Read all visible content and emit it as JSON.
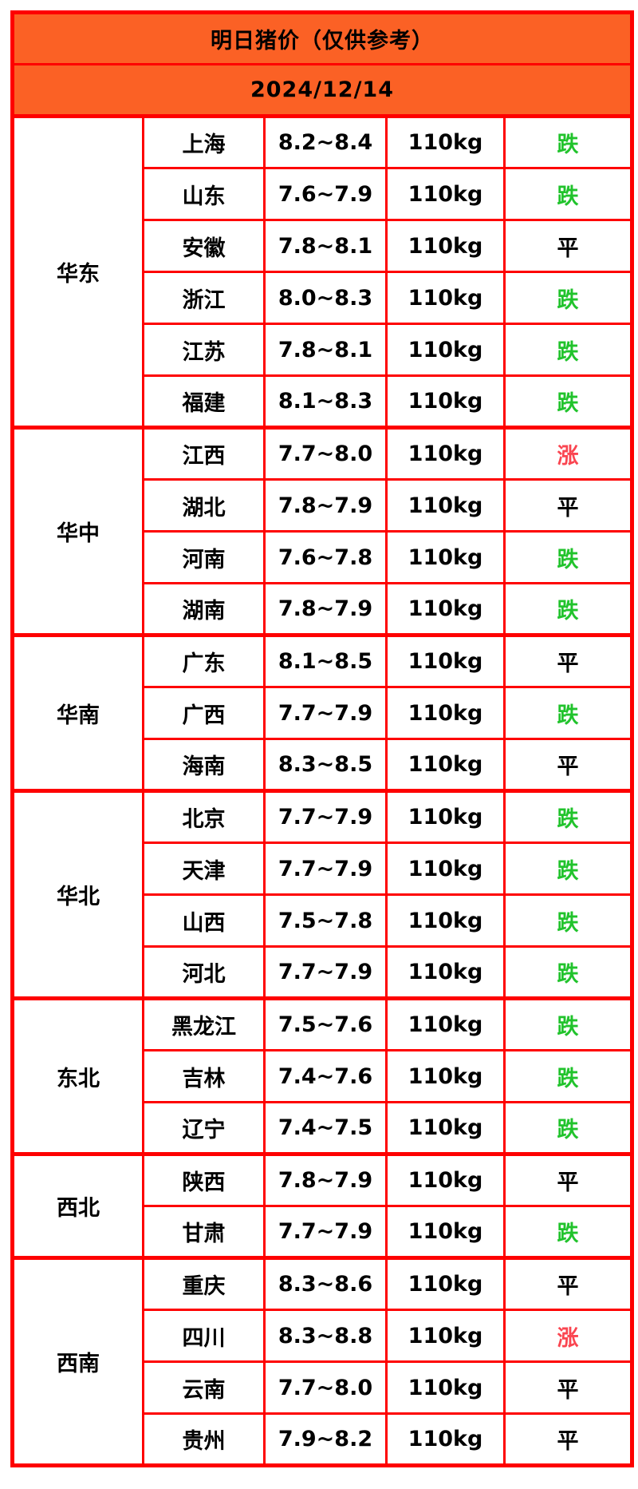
{
  "header": {
    "title": "明日猪价（仅供参考）",
    "date": "2024/12/14"
  },
  "colors": {
    "header_bg": "#FB6125",
    "border_red": "#FE0000",
    "text": "#000000",
    "page_bg": "#FFFFFF",
    "trend_down": "#21C32C",
    "trend_up": "#FA4550",
    "trend_flat": "#000000"
  },
  "trend_legend": {
    "down": "跌",
    "up": "涨",
    "flat": "平"
  },
  "chart_data": {
    "type": "table",
    "title": "明日猪价（仅供参考）",
    "date": "2024/12/14",
    "columns": [
      "region",
      "province",
      "price_range",
      "weight",
      "trend"
    ],
    "groups": [
      {
        "region": "华东",
        "rows": [
          {
            "province": "上海",
            "price": "8.2~8.4",
            "weight": "110kg",
            "trend": "跌",
            "trend_type": "down"
          },
          {
            "province": "山东",
            "price": "7.6~7.9",
            "weight": "110kg",
            "trend": "跌",
            "trend_type": "down"
          },
          {
            "province": "安徽",
            "price": "7.8~8.1",
            "weight": "110kg",
            "trend": "平",
            "trend_type": "flat"
          },
          {
            "province": "浙江",
            "price": "8.0~8.3",
            "weight": "110kg",
            "trend": "跌",
            "trend_type": "down"
          },
          {
            "province": "江苏",
            "price": "7.8~8.1",
            "weight": "110kg",
            "trend": "跌",
            "trend_type": "down"
          },
          {
            "province": "福建",
            "price": "8.1~8.3",
            "weight": "110kg",
            "trend": "跌",
            "trend_type": "down"
          }
        ]
      },
      {
        "region": "华中",
        "rows": [
          {
            "province": "江西",
            "price": "7.7~8.0",
            "weight": "110kg",
            "trend": "涨",
            "trend_type": "up"
          },
          {
            "province": "湖北",
            "price": "7.8~7.9",
            "weight": "110kg",
            "trend": "平",
            "trend_type": "flat"
          },
          {
            "province": "河南",
            "price": "7.6~7.8",
            "weight": "110kg",
            "trend": "跌",
            "trend_type": "down"
          },
          {
            "province": "湖南",
            "price": "7.8~7.9",
            "weight": "110kg",
            "trend": "跌",
            "trend_type": "down"
          }
        ]
      },
      {
        "region": "华南",
        "rows": [
          {
            "province": "广东",
            "price": "8.1~8.5",
            "weight": "110kg",
            "trend": "平",
            "trend_type": "flat"
          },
          {
            "province": "广西",
            "price": "7.7~7.9",
            "weight": "110kg",
            "trend": "跌",
            "trend_type": "down"
          },
          {
            "province": "海南",
            "price": "8.3~8.5",
            "weight": "110kg",
            "trend": "平",
            "trend_type": "flat"
          }
        ]
      },
      {
        "region": "华北",
        "rows": [
          {
            "province": "北京",
            "price": "7.7~7.9",
            "weight": "110kg",
            "trend": "跌",
            "trend_type": "down"
          },
          {
            "province": "天津",
            "price": "7.7~7.9",
            "weight": "110kg",
            "trend": "跌",
            "trend_type": "down"
          },
          {
            "province": "山西",
            "price": "7.5~7.8",
            "weight": "110kg",
            "trend": "跌",
            "trend_type": "down"
          },
          {
            "province": "河北",
            "price": "7.7~7.9",
            "weight": "110kg",
            "trend": "跌",
            "trend_type": "down"
          }
        ]
      },
      {
        "region": "东北",
        "rows": [
          {
            "province": "黑龙江",
            "price": "7.5~7.6",
            "weight": "110kg",
            "trend": "跌",
            "trend_type": "down"
          },
          {
            "province": "吉林",
            "price": "7.4~7.6",
            "weight": "110kg",
            "trend": "跌",
            "trend_type": "down"
          },
          {
            "province": "辽宁",
            "price": "7.4~7.5",
            "weight": "110kg",
            "trend": "跌",
            "trend_type": "down"
          }
        ]
      },
      {
        "region": "西北",
        "rows": [
          {
            "province": "陕西",
            "price": "7.8~7.9",
            "weight": "110kg",
            "trend": "平",
            "trend_type": "flat"
          },
          {
            "province": "甘肃",
            "price": "7.7~7.9",
            "weight": "110kg",
            "trend": "跌",
            "trend_type": "down"
          }
        ]
      },
      {
        "region": "西南",
        "rows": [
          {
            "province": "重庆",
            "price": "8.3~8.6",
            "weight": "110kg",
            "trend": "平",
            "trend_type": "flat"
          },
          {
            "province": "四川",
            "price": "8.3~8.8",
            "weight": "110kg",
            "trend": "涨",
            "trend_type": "up"
          },
          {
            "province": "云南",
            "price": "7.7~8.0",
            "weight": "110kg",
            "trend": "平",
            "trend_type": "flat"
          },
          {
            "province": "贵州",
            "price": "7.9~8.2",
            "weight": "110kg",
            "trend": "平",
            "trend_type": "flat"
          }
        ]
      }
    ]
  }
}
